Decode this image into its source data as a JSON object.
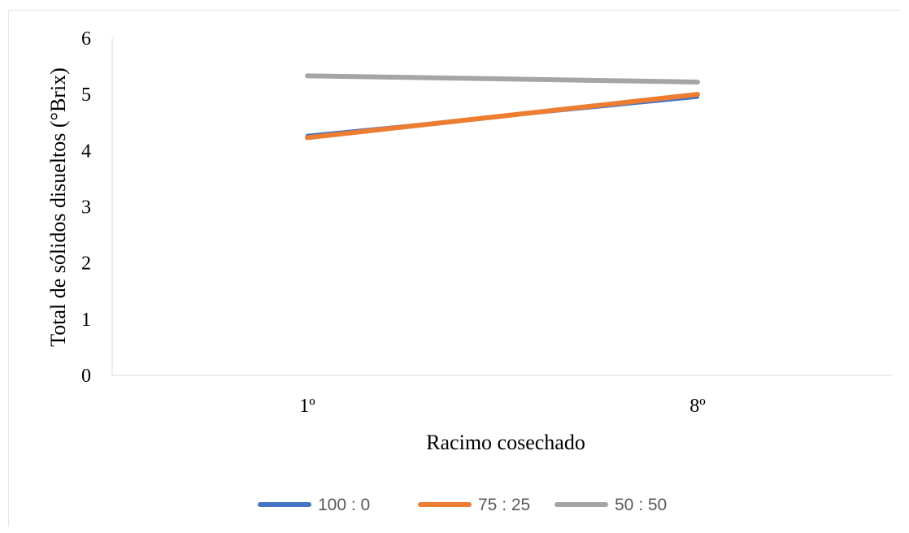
{
  "chart_data": {
    "type": "line",
    "title": "",
    "xlabel": "Racimo cosechado",
    "ylabel": "Total de sólidos disueltos (°Brix)",
    "categories": [
      "1º",
      "8º"
    ],
    "ylim": [
      0,
      6
    ],
    "yticks": [
      0,
      1,
      2,
      3,
      4,
      5,
      6
    ],
    "grid": false,
    "legend_position": "bottom",
    "series": [
      {
        "name": "100 : 0",
        "values": [
          4.27,
          4.95
        ],
        "color": "#4472c4"
      },
      {
        "name": "75 : 25",
        "values": [
          4.23,
          5.0
        ],
        "color": "#ed7d31"
      },
      {
        "name": "50 : 50",
        "values": [
          5.33,
          5.22
        ],
        "color": "#a5a5a5"
      }
    ]
  }
}
